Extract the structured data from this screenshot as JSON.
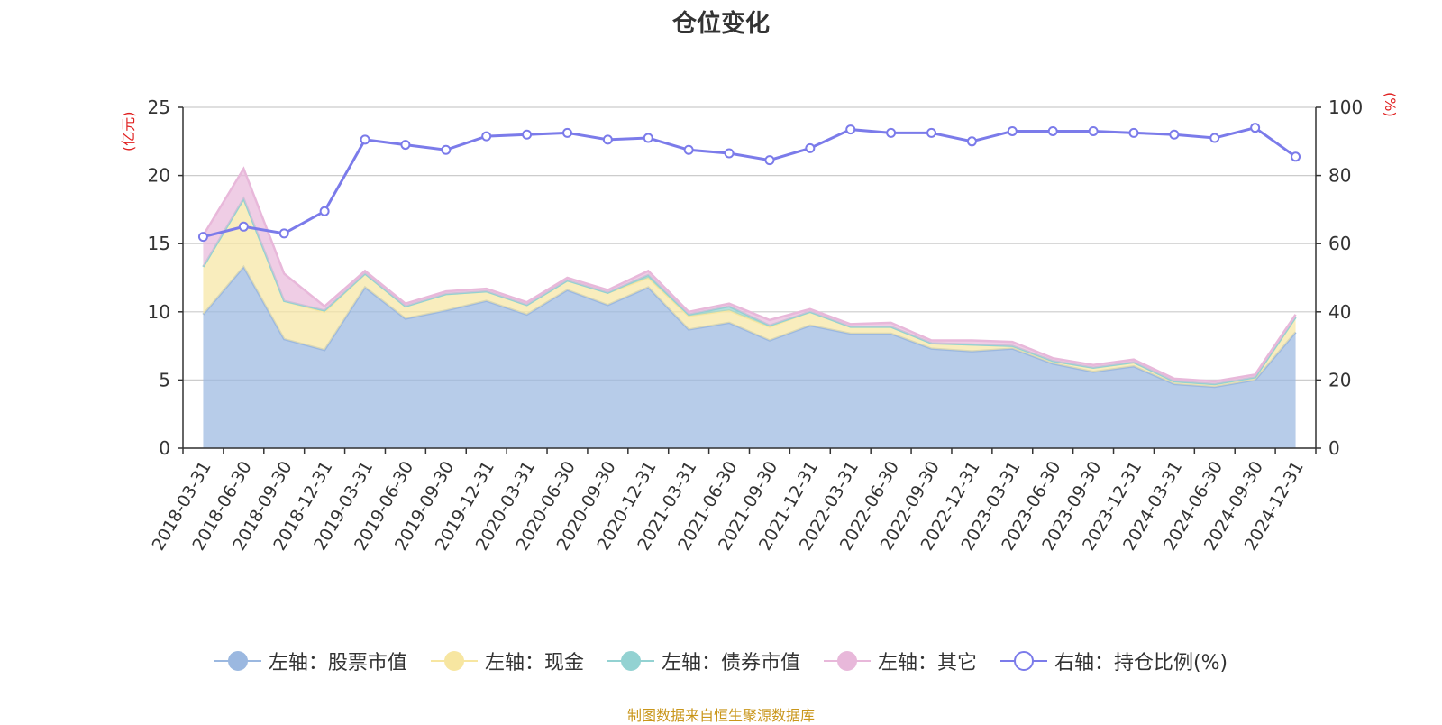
{
  "title": "仓位变化",
  "left_unit": "(亿元)",
  "right_unit": "(%)",
  "source": "制图数据来自恒生聚源数据库",
  "legend": [
    {
      "label": "左轴：股票市值",
      "color": "#9bb8e0",
      "hollow": false
    },
    {
      "label": "左轴：现金",
      "color": "#f7e6a1",
      "hollow": false
    },
    {
      "label": "左轴：债券市值",
      "color": "#93d2d2",
      "hollow": false
    },
    {
      "label": "左轴：其它",
      "color": "#e8b8da",
      "hollow": false
    },
    {
      "label": "右轴：持仓比例(%)",
      "color": "#7b7bea",
      "hollow": true
    }
  ],
  "chart_data": {
    "type": "area",
    "title": "仓位变化",
    "categories": [
      "2018-03-31",
      "2018-06-30",
      "2018-09-30",
      "2018-12-31",
      "2019-03-31",
      "2019-06-30",
      "2019-09-30",
      "2019-12-31",
      "2020-03-31",
      "2020-06-30",
      "2020-09-30",
      "2020-12-31",
      "2021-03-31",
      "2021-06-30",
      "2021-09-30",
      "2021-12-31",
      "2022-03-31",
      "2022-06-30",
      "2022-09-30",
      "2022-12-31",
      "2023-03-31",
      "2023-06-30",
      "2023-09-30",
      "2023-12-31",
      "2024-03-31",
      "2024-06-30",
      "2024-09-30",
      "2024-12-31"
    ],
    "left_axis": {
      "label": "(亿元)",
      "ylim": [
        0,
        25
      ],
      "ticks": [
        0,
        5,
        10,
        15,
        20,
        25
      ]
    },
    "right_axis": {
      "label": "(%)",
      "ylim": [
        0,
        100
      ],
      "ticks": [
        0,
        20,
        40,
        60,
        80,
        100
      ]
    },
    "stacked_series": [
      {
        "name": "左轴：股票市值",
        "axis": "left",
        "color": "#9bb8e0",
        "values": [
          9.8,
          13.3,
          8.0,
          7.2,
          11.8,
          9.5,
          10.1,
          10.8,
          9.8,
          11.6,
          10.5,
          11.8,
          8.7,
          9.2,
          7.9,
          9.0,
          8.4,
          8.4,
          7.3,
          7.1,
          7.3,
          6.2,
          5.6,
          6.0,
          4.7,
          4.5,
          5.0,
          8.5
        ]
      },
      {
        "name": "左轴：现金",
        "axis": "left",
        "color": "#f7e6a1",
        "values": [
          3.5,
          5.0,
          2.8,
          2.8,
          1.0,
          0.9,
          1.2,
          0.7,
          0.7,
          0.7,
          0.9,
          0.7,
          1.0,
          0.9,
          1.0,
          1.0,
          0.5,
          0.5,
          0.4,
          0.5,
          0.2,
          0.2,
          0.3,
          0.3,
          0.2,
          0.2,
          0.2,
          1.1
        ]
      },
      {
        "name": "左轴：债券市值",
        "axis": "left",
        "color": "#93d2d2",
        "values": [
          0,
          0,
          0,
          0.1,
          0,
          0,
          0,
          0,
          0,
          0,
          0,
          0.2,
          0.1,
          0.3,
          0.1,
          0,
          0,
          0,
          0,
          0,
          0,
          0,
          0,
          0,
          0,
          0,
          0,
          0
        ]
      },
      {
        "name": "左轴：其它",
        "axis": "left",
        "color": "#e8b8da",
        "values": [
          2.3,
          2.2,
          2.0,
          0.3,
          0.2,
          0.2,
          0.2,
          0.2,
          0.2,
          0.2,
          0.2,
          0.3,
          0.2,
          0.2,
          0.4,
          0.2,
          0.2,
          0.3,
          0.2,
          0.3,
          0.3,
          0.2,
          0.2,
          0.2,
          0.2,
          0.2,
          0.2,
          0.2
        ]
      }
    ],
    "line_series": {
      "name": "右轴：持仓比例(%)",
      "axis": "right",
      "color": "#7b7bea",
      "values": [
        62,
        65,
        63,
        69.5,
        90.5,
        89,
        87.5,
        91.5,
        92,
        92.5,
        90.5,
        91,
        87.5,
        86.5,
        84.5,
        88,
        93.5,
        92.5,
        92.5,
        90,
        93,
        93,
        93,
        92.5,
        92,
        91,
        94,
        85.5
      ]
    }
  }
}
